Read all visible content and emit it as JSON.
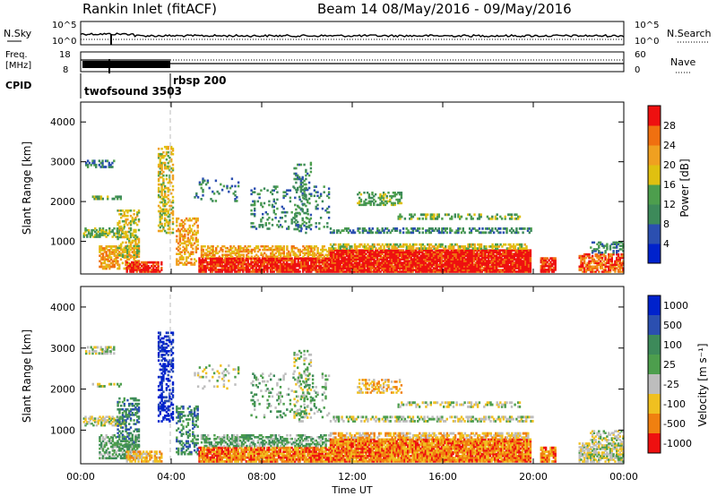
{
  "header": {
    "station": "Rankin Inlet (fitACF)",
    "beam": "Beam 14 08/May/2016 - 09/May/2016"
  },
  "nsky_panel": {
    "left_label": "N.Sky",
    "right_label": "N.Search",
    "left_ticks": [
      "10^5",
      "10^0"
    ],
    "right_ticks": [
      "10^5",
      "10^0"
    ]
  },
  "freq_panel": {
    "left_label_1": "Freq.",
    "left_label_2": "[MHz]",
    "right_label": "Nave",
    "left_ticks": [
      "18",
      "8"
    ],
    "right_ticks": [
      "60",
      "0"
    ]
  },
  "cpid_panel": {
    "label": "CPID",
    "programs": [
      "twofsound 3503",
      "rbsp 200"
    ]
  },
  "colors": {
    "power_scale": [
      "#0022cc",
      "#2b4fb0",
      "#3d8a5a",
      "#4d9e4d",
      "#e0c010",
      "#f0a020",
      "#f07010",
      "#ee1010"
    ],
    "velocity_scale": [
      "#0022cc",
      "#2b4fb0",
      "#3d8a5a",
      "#4d9e4d",
      "#bdbdbd",
      "#f0c020",
      "#f08010",
      "#ee1010"
    ]
  },
  "chart_data": [
    {
      "type": "heatmap",
      "name": "power",
      "ylabel": "Slant Range [km]",
      "yticks": [
        "1000",
        "2000",
        "3000",
        "4000"
      ],
      "ylim": [
        180,
        4500
      ],
      "xlim_hours": [
        0,
        24
      ],
      "colorbar_label": "Power [dB]",
      "colorbar_ticks": [
        "4",
        "8",
        "12",
        "16",
        "20",
        "24",
        "28"
      ],
      "colorbar_range": [
        0,
        32
      ]
    },
    {
      "type": "heatmap",
      "name": "velocity",
      "ylabel": "Slant Range [km]",
      "yticks": [
        "1000",
        "2000",
        "3000",
        "4000"
      ],
      "ylim": [
        180,
        4500
      ],
      "xlim_hours": [
        0,
        24
      ],
      "colorbar_label": "Velocity [m s⁻¹]",
      "colorbar_ticks": [
        "1000",
        "500",
        "100",
        "25",
        "-25",
        "-100",
        "-500",
        "-1000"
      ]
    }
  ],
  "x_axis": {
    "ticks": [
      "00:00",
      "04:00",
      "08:00",
      "12:00",
      "16:00",
      "20:00",
      "00:00"
    ],
    "label": "Time UT"
  }
}
